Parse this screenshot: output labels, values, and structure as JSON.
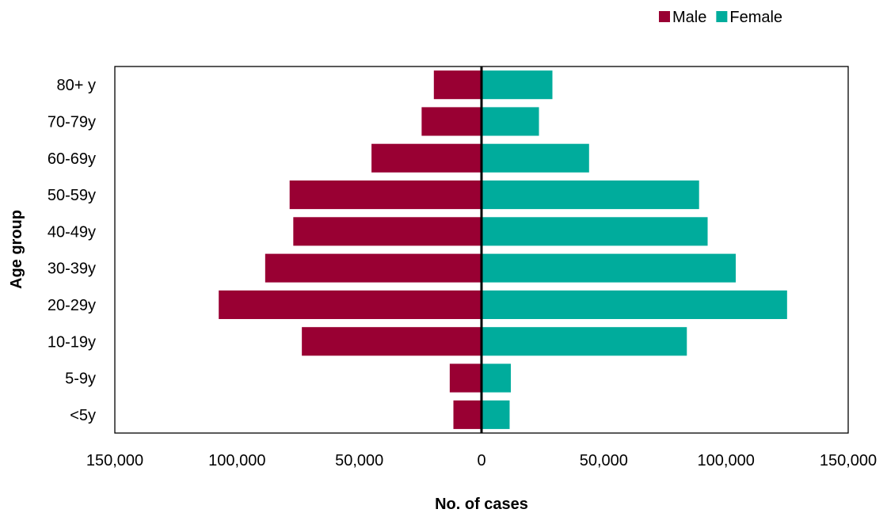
{
  "chart_data": {
    "type": "bar",
    "orientation": "horizontal",
    "layout": "population-pyramid",
    "title": "",
    "xlabel": "No. of cases",
    "ylabel": "Age group",
    "xlim": [
      -150000,
      150000
    ],
    "xticks": [
      -150000,
      -100000,
      -50000,
      0,
      50000,
      100000,
      150000
    ],
    "xtick_labels": [
      "150,000",
      "100,000",
      "50,000",
      "0",
      "50,000",
      "100,000",
      "150,000"
    ],
    "categories": [
      "80+ y",
      "70-79y",
      "60-69y",
      "50-59y",
      "40-49y",
      "30-39y",
      "20-29y",
      "10-19y",
      "5-9y",
      "<5y"
    ],
    "series": [
      {
        "name": "Male",
        "color": "#990033",
        "side": "left",
        "values": [
          19500,
          24500,
          45000,
          78500,
          77000,
          88500,
          107500,
          73500,
          13000,
          11500
        ]
      },
      {
        "name": "Female",
        "color": "#00ac9c",
        "side": "right",
        "values": [
          29000,
          23500,
          44000,
          89000,
          92500,
          104000,
          125000,
          84000,
          12000,
          11500
        ]
      }
    ],
    "legend_position": "top-right",
    "grid": false
  }
}
